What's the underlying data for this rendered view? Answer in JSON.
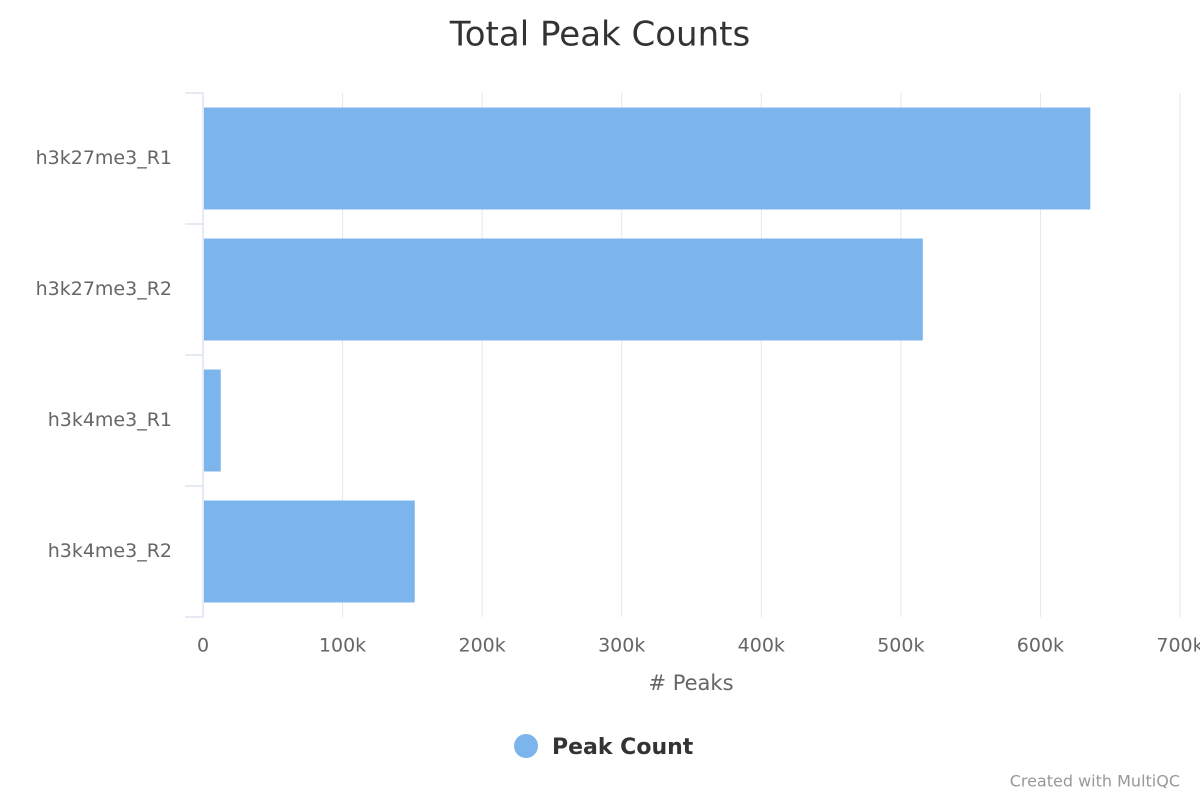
{
  "chart_data": {
    "type": "bar",
    "orientation": "horizontal",
    "title": "Total Peak Counts",
    "categories": [
      "h3k27me3_R1",
      "h3k27me3_R2",
      "h3k4me3_R1",
      "h3k4me3_R2"
    ],
    "series": [
      {
        "name": "Peak Count",
        "color": "#7cb5ec",
        "values": [
          635000,
          515000,
          12000,
          151000
        ]
      }
    ],
    "xlabel": "# Peaks",
    "xlim": [
      0,
      700000
    ],
    "xticks": [
      0,
      {
        "value": 100000,
        "label": "100k"
      },
      {
        "value": 200000,
        "label": "200k"
      },
      {
        "value": 300000,
        "label": "300k"
      },
      {
        "value": 400000,
        "label": "400k"
      },
      {
        "value": 500000,
        "label": "500k"
      },
      {
        "value": 600000,
        "label": "600k"
      },
      {
        "value": 700000,
        "label": "700k"
      }
    ],
    "grid": true,
    "legend": "bottom",
    "credits": "Created with MultiQC"
  }
}
